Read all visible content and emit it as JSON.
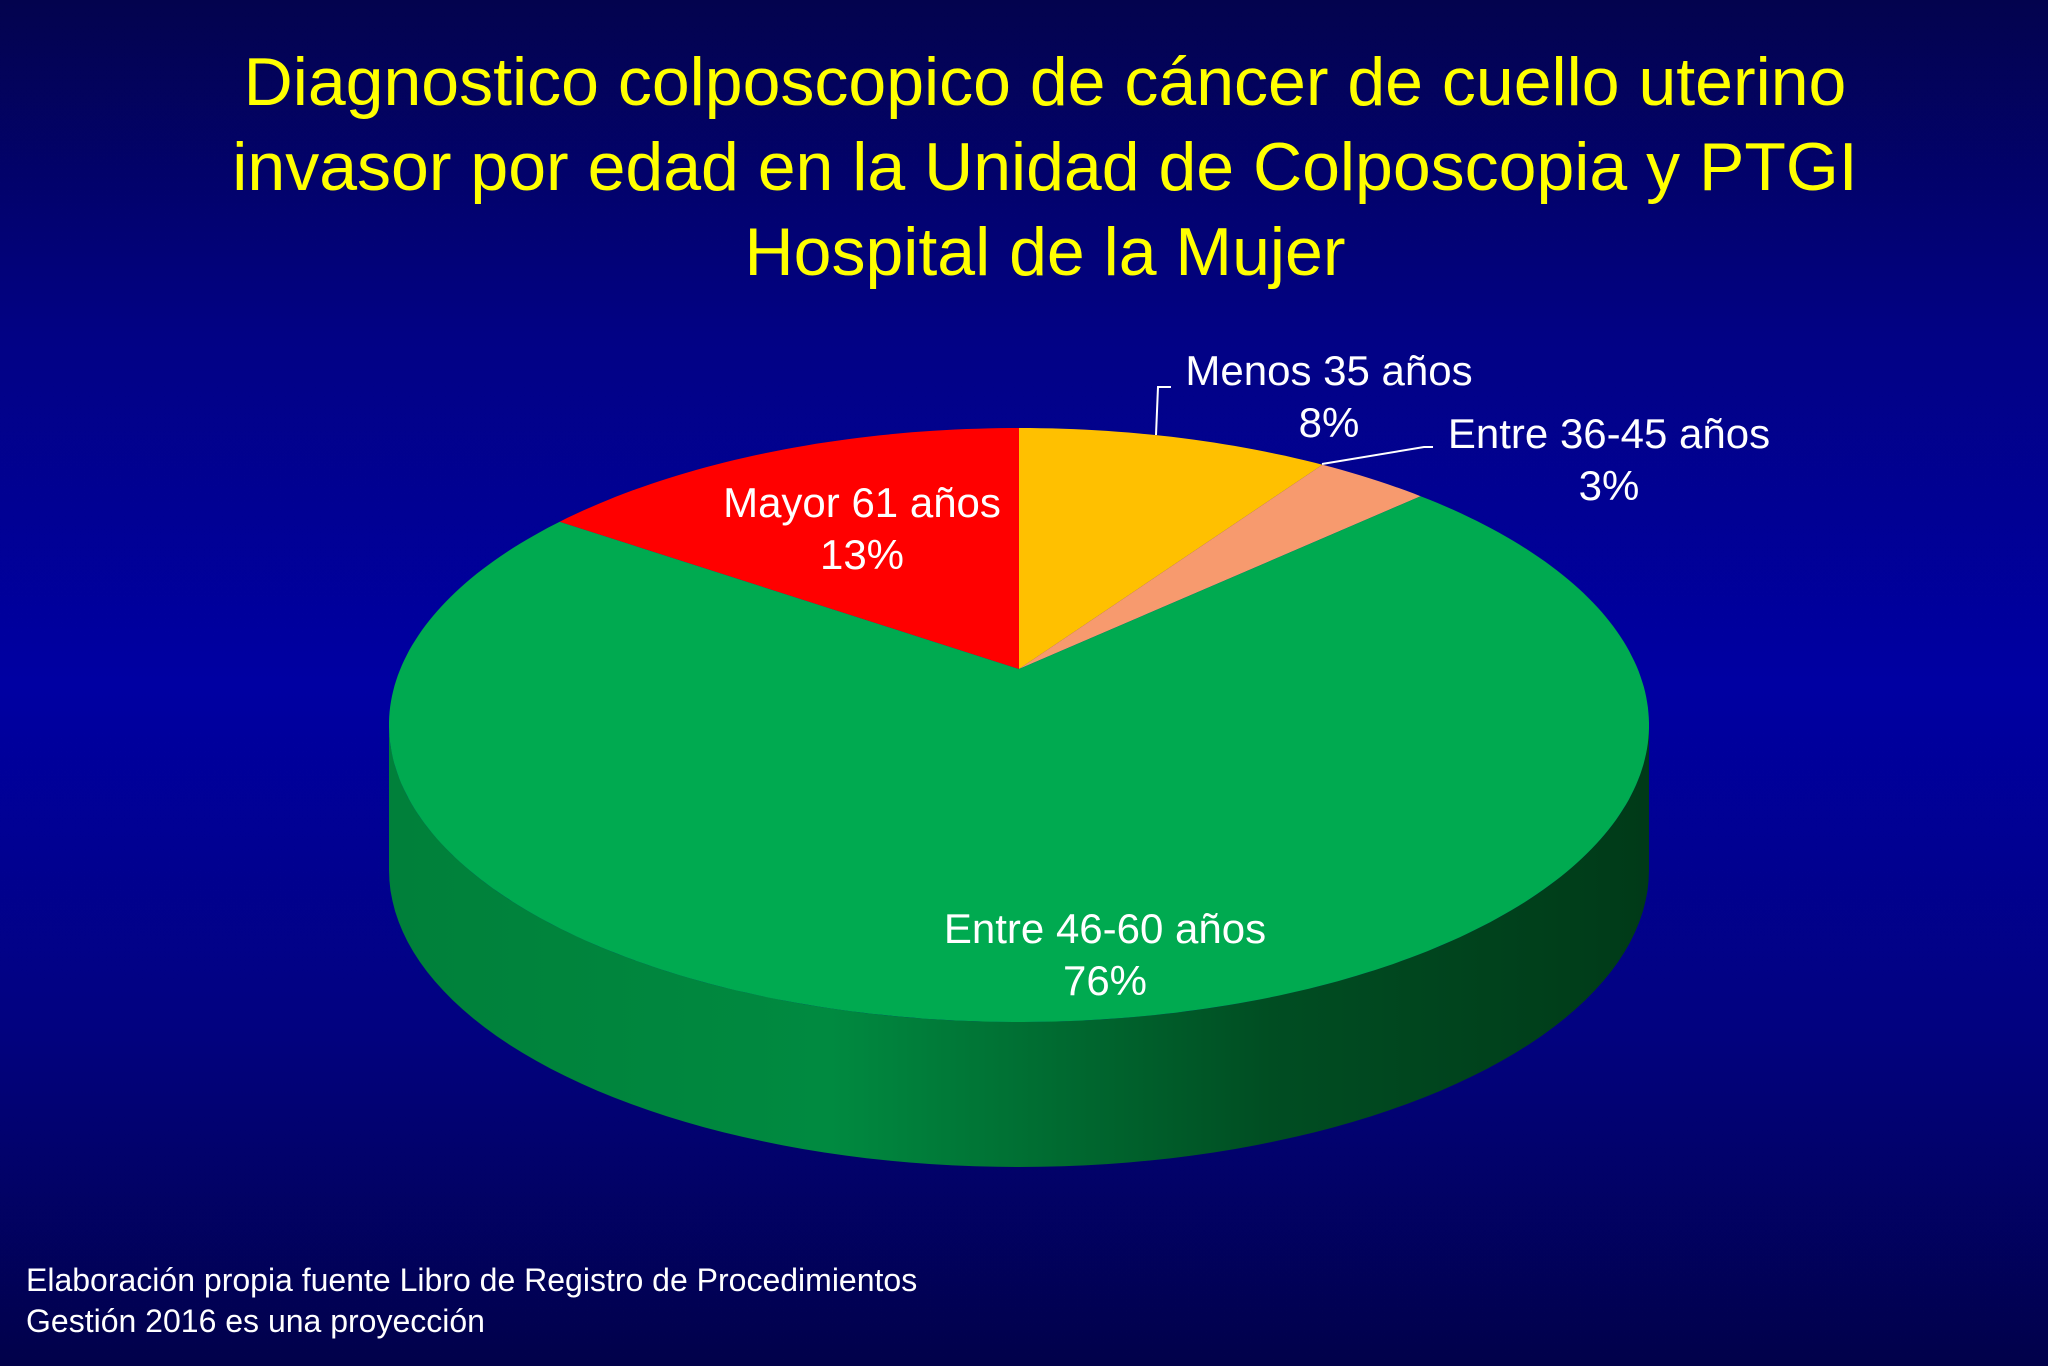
{
  "chart_data": {
    "type": "pie",
    "style": "3d",
    "title": "Diagnostico colposcopico de cáncer de cuello uterino invasor por edad en la Unidad de Colposcopia y PTGI Hospital de la Mujer",
    "title_lines": [
      "Diagnostico colposcopico de cáncer de cuello uterino",
      "invasor por edad en la Unidad de Colposcopia y PTGI",
      "Hospital de la Mujer"
    ],
    "slices": [
      {
        "label": "Menos 35 años",
        "value": 8,
        "value_label": "8%",
        "color": "#FFC000"
      },
      {
        "label": "Entre 36-45 años",
        "value": 3,
        "value_label": "3%",
        "color": "#F79A6E"
      },
      {
        "label": "Entre 46-60 años",
        "value": 76,
        "value_label": "76%",
        "color": "#00AA50"
      },
      {
        "label": "Mayor 61 años",
        "value": 13,
        "value_label": "13%",
        "color": "#FF0000"
      }
    ],
    "start_angle": "12 o'clock",
    "direction": "clockwise",
    "title_color": "#FFFF00",
    "label_color": "#FFFFFF"
  },
  "footnote": {
    "line1": "Elaboración propia fuente Libro de Registro de Procedimientos",
    "line2": "Gestión 2016 es una proyección"
  }
}
